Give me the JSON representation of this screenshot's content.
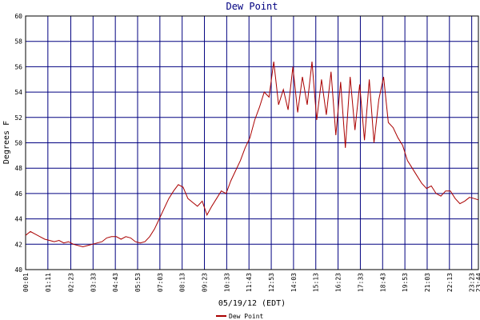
{
  "chart_data": {
    "type": "line",
    "title": "Dew Point",
    "y_label": "Degrees F",
    "x_label": "05/19/12 (EDT)",
    "legend": "bottom",
    "grid": true,
    "grid_color": "#000080",
    "ylim": [
      40,
      60
    ],
    "yticks": [
      40,
      42,
      44,
      46,
      48,
      50,
      52,
      54,
      56,
      58,
      60
    ],
    "xlim": [
      1,
      1424
    ],
    "xticks": [
      {
        "value": 1,
        "label": "00:01"
      },
      {
        "value": 71,
        "label": "01:11"
      },
      {
        "value": 143,
        "label": "02:23"
      },
      {
        "value": 213,
        "label": "03:33"
      },
      {
        "value": 283,
        "label": "04:43"
      },
      {
        "value": 353,
        "label": "05:53"
      },
      {
        "value": 423,
        "label": "07:03"
      },
      {
        "value": 493,
        "label": "08:13"
      },
      {
        "value": 563,
        "label": "09:23"
      },
      {
        "value": 633,
        "label": "10:33"
      },
      {
        "value": 703,
        "label": "11:43"
      },
      {
        "value": 773,
        "label": "12:53"
      },
      {
        "value": 843,
        "label": "14:03"
      },
      {
        "value": 913,
        "label": "15:13"
      },
      {
        "value": 983,
        "label": "16:23"
      },
      {
        "value": 1053,
        "label": "17:33"
      },
      {
        "value": 1123,
        "label": "18:43"
      },
      {
        "value": 1193,
        "label": "19:53"
      },
      {
        "value": 1263,
        "label": "21:03"
      },
      {
        "value": 1333,
        "label": "22:13"
      },
      {
        "value": 1403,
        "label": "23:23"
      },
      {
        "value": 1424,
        "label": "23:44"
      }
    ],
    "x": [
      1,
      16,
      31,
      46,
      61,
      76,
      91,
      106,
      121,
      136,
      151,
      166,
      181,
      196,
      211,
      226,
      241,
      256,
      271,
      286,
      301,
      316,
      331,
      346,
      361,
      376,
      391,
      406,
      421,
      436,
      451,
      466,
      481,
      496,
      511,
      526,
      541,
      556,
      571,
      586,
      601,
      616,
      631,
      646,
      661,
      676,
      691,
      706,
      721,
      736,
      751,
      766,
      781,
      796,
      811,
      826,
      841,
      856,
      871,
      886,
      901,
      916,
      931,
      946,
      961,
      976,
      991,
      1006,
      1021,
      1036,
      1051,
      1066,
      1081,
      1096,
      1111,
      1126,
      1141,
      1156,
      1171,
      1186,
      1201,
      1216,
      1231,
      1246,
      1261,
      1276,
      1291,
      1306,
      1321,
      1336,
      1351,
      1366,
      1381,
      1396,
      1411,
      1424
    ],
    "series": [
      {
        "name": "Dew Point",
        "color": "#aa0000",
        "values": [
          42.7,
          43.0,
          42.8,
          42.6,
          42.4,
          42.3,
          42.2,
          42.3,
          42.1,
          42.2,
          42.0,
          41.9,
          41.8,
          41.9,
          42.0,
          42.1,
          42.2,
          42.5,
          42.6,
          42.6,
          42.4,
          42.6,
          42.5,
          42.2,
          42.1,
          42.2,
          42.6,
          43.2,
          44.0,
          44.8,
          45.6,
          46.2,
          46.7,
          46.5,
          45.6,
          45.3,
          45.0,
          45.4,
          44.3,
          45.0,
          45.6,
          46.2,
          46.0,
          47.0,
          47.8,
          48.6,
          49.6,
          50.4,
          51.8,
          52.8,
          54.0,
          53.6,
          56.4,
          53.0,
          54.2,
          52.6,
          56.0,
          52.4,
          55.2,
          53.0,
          56.4,
          51.8,
          55.0,
          52.2,
          55.6,
          50.6,
          54.8,
          49.6,
          55.2,
          51.0,
          54.6,
          50.2,
          55.0,
          50.0,
          53.4,
          55.2,
          51.6,
          51.2,
          50.4,
          49.8,
          48.6,
          48.0,
          47.4,
          46.8,
          46.4,
          46.6,
          46.0,
          45.8,
          46.2,
          46.2,
          45.6,
          45.2,
          45.4,
          45.7,
          45.6,
          45.5
        ]
      }
    ]
  }
}
